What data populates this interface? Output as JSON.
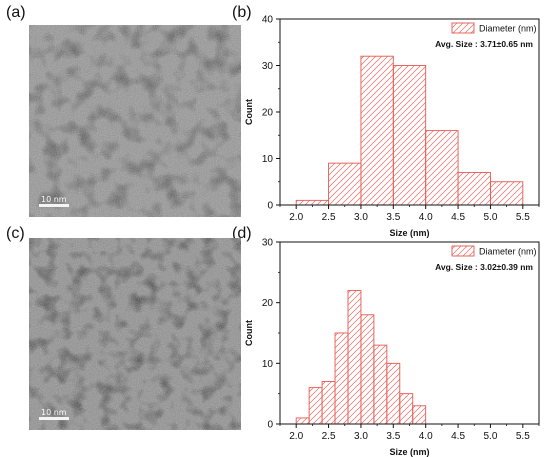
{
  "panels": {
    "a": {
      "letter": "(a)",
      "scale_label": "10 nm"
    },
    "b": {
      "letter": "(b)"
    },
    "c": {
      "letter": "(c)",
      "scale_label": "10 nm"
    },
    "d": {
      "letter": "(d)"
    }
  },
  "colors": {
    "bar_stroke": "#e8574f",
    "hatch": "#e86a64"
  },
  "chart_data": [
    {
      "type": "bar",
      "bins": [
        [
          2.0,
          2.5
        ],
        [
          2.5,
          3.0
        ],
        [
          3.0,
          3.5
        ],
        [
          3.5,
          4.0
        ],
        [
          4.0,
          4.5
        ],
        [
          4.5,
          5.0
        ],
        [
          5.0,
          5.5
        ]
      ],
      "values": [
        1,
        9,
        32,
        30,
        16,
        7,
        5
      ],
      "xticks": [
        "2.0",
        "2.5",
        "3.0",
        "3.5",
        "4.0",
        "4.5",
        "5.0",
        "5.5"
      ],
      "yticks": [
        "0",
        "10",
        "20",
        "30",
        "40"
      ],
      "xlim": [
        1.75,
        5.75
      ],
      "ylim": [
        0,
        40
      ],
      "xlabel": "Size (nm)",
      "ylabel": "Count",
      "legend": "Diameter (nm)",
      "annotation": "Avg. Size : 3.71±0.65 nm",
      "legend_position": "top-right"
    },
    {
      "type": "bar",
      "bins": [
        [
          2.0,
          2.2
        ],
        [
          2.2,
          2.4
        ],
        [
          2.4,
          2.6
        ],
        [
          2.6,
          2.8
        ],
        [
          2.8,
          3.0
        ],
        [
          3.0,
          3.2
        ],
        [
          3.2,
          3.4
        ],
        [
          3.4,
          3.6
        ],
        [
          3.6,
          3.8
        ],
        [
          3.8,
          4.0
        ]
      ],
      "values": [
        1,
        6,
        7,
        15,
        22,
        18,
        13,
        10,
        5,
        3
      ],
      "xticks": [
        "2.0",
        "2.5",
        "3.0",
        "3.5",
        "4.0",
        "4.5",
        "5.0",
        "5.5"
      ],
      "yticks": [
        "0",
        "10",
        "20",
        "30"
      ],
      "xlim": [
        1.75,
        5.75
      ],
      "ylim": [
        0,
        30
      ],
      "xlabel": "Size (nm)",
      "ylabel": "Count",
      "legend": "Diameter (nm)",
      "annotation": "Avg. Size : 3.02±0.39 nm",
      "legend_position": "top-right"
    }
  ]
}
